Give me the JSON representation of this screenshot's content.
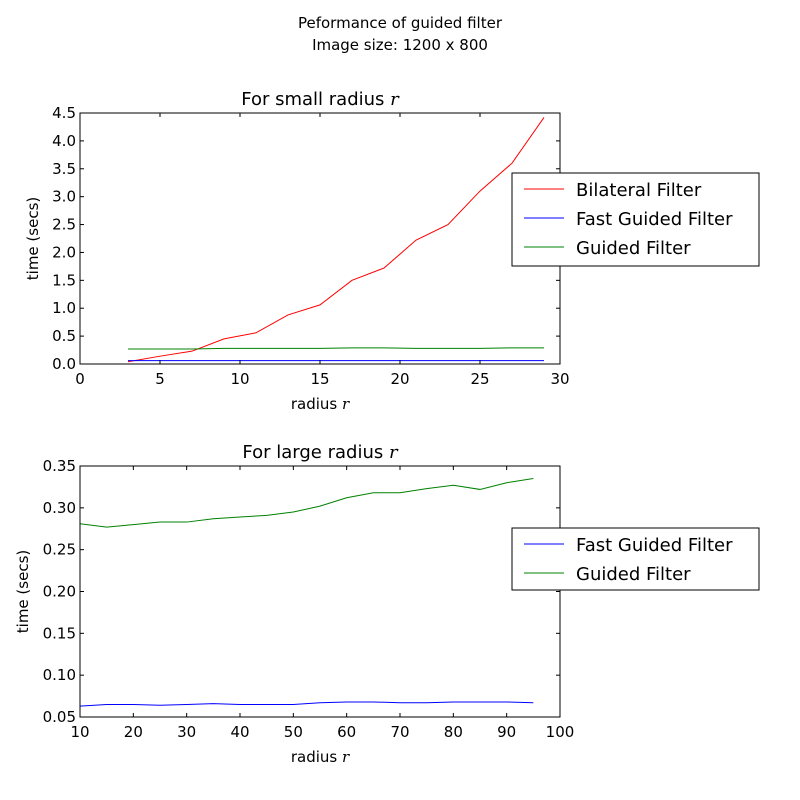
{
  "figure": {
    "suptitle_line1": "Peformance of guided filter",
    "suptitle_line2": "Image size: 1200 x 800"
  },
  "chart_data": [
    {
      "type": "line",
      "title": "For small radius",
      "title_math": "r",
      "xlabel": "radius",
      "xlabel_math": "r",
      "ylabel": "time (secs)",
      "xlim": [
        0,
        30
      ],
      "ylim": [
        0,
        4.5
      ],
      "xticks": [
        0,
        5,
        10,
        15,
        20,
        25,
        30
      ],
      "xtick_labels": [
        "0",
        "5",
        "10",
        "15",
        "20",
        "25",
        "30"
      ],
      "yticks": [
        0,
        0.5,
        1,
        1.5,
        2,
        2.5,
        3,
        3.5,
        4,
        4.5
      ],
      "ytick_labels": [
        "0.0",
        "0.5",
        "1.0",
        "1.5",
        "2.0",
        "2.5",
        "3.0",
        "3.5",
        "4.0",
        "4.5"
      ],
      "grid": false,
      "legend_placement": "right, outside axes",
      "x": [
        3,
        5,
        7,
        9,
        11,
        13,
        15,
        17,
        19,
        21,
        23,
        25,
        27,
        29
      ],
      "series": [
        {
          "name": "Bilateral Filter",
          "color": "#ff0000",
          "values": [
            0.04,
            0.14,
            0.23,
            0.45,
            0.56,
            0.88,
            1.06,
            1.5,
            1.72,
            2.22,
            2.5,
            3.1,
            3.6,
            4.42
          ]
        },
        {
          "name": "Fast Guided Filter",
          "color": "#0000ff",
          "values": [
            0.06,
            0.06,
            0.06,
            0.06,
            0.06,
            0.06,
            0.06,
            0.06,
            0.06,
            0.06,
            0.06,
            0.06,
            0.06,
            0.06
          ]
        },
        {
          "name": "Guided Filter",
          "color": "#008000",
          "values": [
            0.27,
            0.27,
            0.27,
            0.28,
            0.28,
            0.28,
            0.28,
            0.29,
            0.29,
            0.28,
            0.28,
            0.28,
            0.29,
            0.29
          ]
        }
      ]
    },
    {
      "type": "line",
      "title": "For large radius",
      "title_math": "r",
      "xlabel": "radius",
      "xlabel_math": "r",
      "ylabel": "time (secs)",
      "xlim": [
        10,
        100
      ],
      "ylim": [
        0.05,
        0.35
      ],
      "xticks": [
        10,
        20,
        30,
        40,
        50,
        60,
        70,
        80,
        90,
        100
      ],
      "xtick_labels": [
        "10",
        "20",
        "30",
        "40",
        "50",
        "60",
        "70",
        "80",
        "90",
        "100"
      ],
      "yticks": [
        0.05,
        0.1,
        0.15,
        0.2,
        0.25,
        0.3,
        0.35
      ],
      "ytick_labels": [
        "0.05",
        "0.10",
        "0.15",
        "0.20",
        "0.25",
        "0.30",
        "0.35"
      ],
      "grid": false,
      "legend_placement": "right, outside axes",
      "x": [
        10,
        15,
        20,
        25,
        30,
        35,
        40,
        45,
        50,
        55,
        60,
        65,
        70,
        75,
        80,
        85,
        90,
        95
      ],
      "series": [
        {
          "name": "Fast Guided Filter",
          "color": "#0000ff",
          "values": [
            0.063,
            0.065,
            0.065,
            0.064,
            0.065,
            0.066,
            0.065,
            0.065,
            0.065,
            0.067,
            0.068,
            0.068,
            0.067,
            0.067,
            0.068,
            0.068,
            0.068,
            0.067
          ]
        },
        {
          "name": "Guided Filter",
          "color": "#008000",
          "values": [
            0.281,
            0.277,
            0.28,
            0.283,
            0.283,
            0.287,
            0.289,
            0.291,
            0.295,
            0.302,
            0.312,
            0.318,
            0.318,
            0.323,
            0.327,
            0.322,
            0.33,
            0.335
          ]
        }
      ]
    }
  ]
}
